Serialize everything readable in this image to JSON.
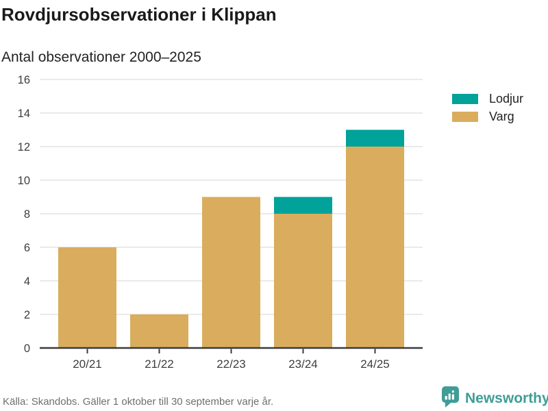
{
  "title": "Rovdjursobservationer i Klippan",
  "subtitle": "Antal observationer 2000–2025",
  "legend": [
    {
      "label": "Lodjur",
      "color": "#00a29a"
    },
    {
      "label": "Varg",
      "color": "#d9ad5d"
    }
  ],
  "footer": {
    "source": "Källa: Skandobs. Gäller 1 oktober till 30 september varje år.",
    "brand": "Newsworthy"
  },
  "colors": {
    "lodjur": "#00a29a",
    "varg": "#d9ad5d",
    "brand_teal": "#3f9d96",
    "grid": "#e3e3e3",
    "axis": "#3b3b3b",
    "axis_text": "#3d3d3d",
    "muted_text": "#6f6f6f"
  },
  "chart_data": {
    "type": "bar",
    "stacked": true,
    "title": "Rovdjursobservationer i Klippan",
    "subtitle": "Antal observationer 2000–2025",
    "xlabel": "",
    "ylabel": "Antal observationer",
    "categories": [
      "20/21",
      "21/22",
      "22/23",
      "23/24",
      "24/25"
    ],
    "series": [
      {
        "name": "Varg",
        "color": "#d9ad5d",
        "values": [
          6,
          2,
          9,
          8,
          12
        ]
      },
      {
        "name": "Lodjur",
        "color": "#00a29a",
        "values": [
          0,
          0,
          0,
          1,
          1
        ]
      }
    ],
    "totals": [
      6,
      2,
      9,
      9,
      13
    ],
    "ylim": [
      0,
      16
    ],
    "yticks": [
      0,
      2,
      4,
      6,
      8,
      10,
      12,
      14,
      16
    ],
    "grid": true,
    "legend_position": "right"
  }
}
